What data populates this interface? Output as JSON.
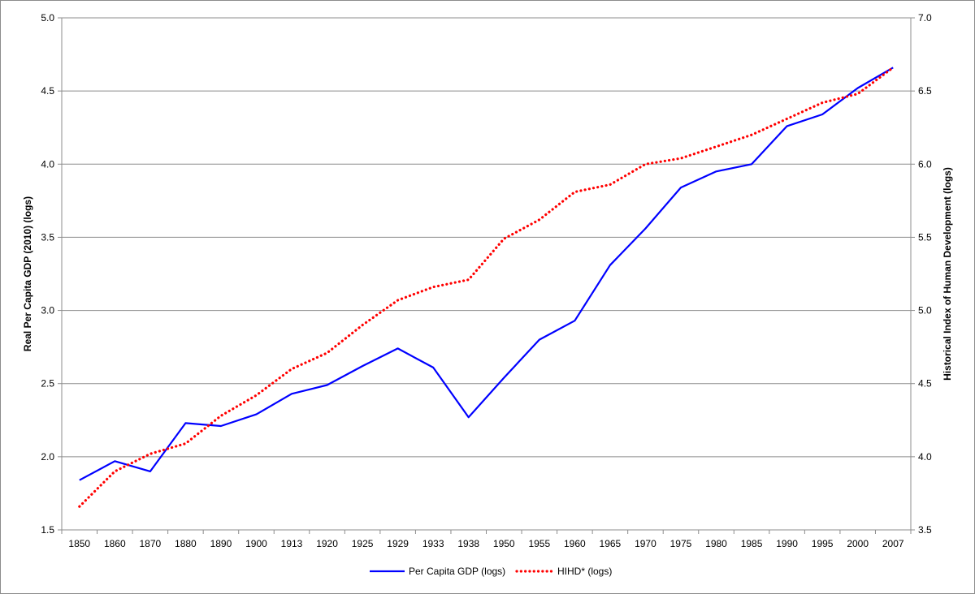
{
  "chart_data": {
    "type": "line",
    "categories": [
      "1850",
      "1860",
      "1870",
      "1880",
      "1890",
      "1900",
      "1913",
      "1920",
      "1925",
      "1929",
      "1933",
      "1938",
      "1950",
      "1955",
      "1960",
      "1965",
      "1970",
      "1975",
      "1980",
      "1985",
      "1990",
      "1995",
      "2000",
      "2007"
    ],
    "series": [
      {
        "name": "Per Capita GDP (logs)",
        "axis": "left",
        "color": "#0000ff",
        "style": "solid",
        "values": [
          1.84,
          1.97,
          1.9,
          2.23,
          2.21,
          2.29,
          2.43,
          2.49,
          2.62,
          2.74,
          2.61,
          2.27,
          2.54,
          2.8,
          2.93,
          3.31,
          3.56,
          3.84,
          3.95,
          4.0,
          4.26,
          4.34,
          4.52,
          4.66
        ]
      },
      {
        "name": "HIHD* (logs)",
        "axis": "right",
        "color": "#ff0000",
        "style": "dotted",
        "values": [
          3.66,
          3.9,
          4.02,
          4.09,
          4.28,
          4.42,
          4.6,
          4.71,
          4.9,
          5.07,
          5.16,
          5.21,
          5.49,
          5.62,
          5.81,
          5.86,
          6.0,
          6.04,
          6.12,
          6.2,
          6.31,
          6.42,
          6.48,
          6.66
        ]
      }
    ],
    "ylabel": "Real Per Capita GDP (2010) (logs)",
    "ylabel_right": "Historical Index of Human Development (logs)",
    "ylim": [
      1.5,
      5.0
    ],
    "ylim_right": [
      3.5,
      7.0
    ],
    "yticks": [
      "1.5",
      "2.0",
      "2.5",
      "3.0",
      "3.5",
      "4.0",
      "4.5",
      "5.0"
    ],
    "yticks_right": [
      "3.5",
      "4.0",
      "4.5",
      "5.0",
      "5.5",
      "6.0",
      "6.5",
      "7.0"
    ],
    "grid": true,
    "legend_position": "bottom"
  }
}
